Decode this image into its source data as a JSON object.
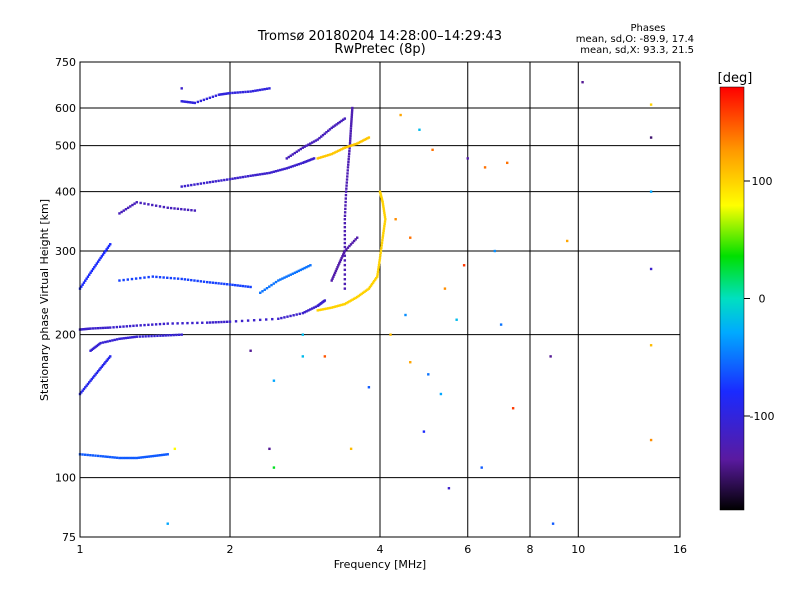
{
  "chart_data": {
    "type": "scatter",
    "title": "Tromsø 20180204 14:28:00–14:29:43",
    "subtitle": "RwPretec (8p)",
    "xlabel": "Frequency [MHz]",
    "ylabel": "Stationary phase Virtual Height [km]",
    "x_scale": "log",
    "y_scale": "log",
    "xlim": [
      1,
      16
    ],
    "ylim": [
      75,
      750
    ],
    "x_ticks": [
      1,
      2,
      4,
      6,
      8,
      10,
      16
    ],
    "x_tick_labels": [
      "1",
      "2",
      "4",
      "6",
      "8",
      "10",
      "16"
    ],
    "y_ticks": [
      75,
      100,
      200,
      300,
      400,
      500,
      600,
      750
    ],
    "y_tick_labels": [
      "75",
      "100",
      "200",
      "300",
      "400",
      "500",
      "600",
      "750"
    ],
    "grid": true,
    "phase_stats": {
      "heading": "Phases",
      "line_o": "mean, sd,O:  -89.9, 17.4",
      "line_x": "mean, sd,X:  93.3, 21.5"
    },
    "colorbar": {
      "label": "[deg]",
      "range": [
        -180,
        180
      ],
      "ticks": [
        -100,
        0,
        100
      ],
      "tick_labels": [
        "-100",
        "0",
        "100"
      ]
    },
    "traces": [
      {
        "f": [
          1.0,
          1.05,
          1.15,
          1.3,
          1.5,
          1.8,
          2.0,
          2.5,
          2.8,
          3.0,
          3.1
        ],
        "h": [
          205,
          206,
          207,
          209,
          211,
          212,
          213,
          216,
          222,
          230,
          236
        ],
        "phase": -110
      },
      {
        "f": [
          1.05,
          1.1,
          1.2,
          1.3,
          1.45,
          1.6
        ],
        "h": [
          185,
          192,
          196,
          198,
          199,
          200
        ],
        "phase": -105
      },
      {
        "f": [
          1.6,
          1.8,
          2.0,
          2.2,
          2.4,
          2.6,
          2.8,
          2.95
        ],
        "h": [
          410,
          418,
          425,
          432,
          438,
          448,
          460,
          470
        ],
        "phase": -110
      },
      {
        "f": [
          2.6,
          2.8,
          3.0,
          3.2,
          3.4
        ],
        "h": [
          470,
          495,
          515,
          545,
          570
        ],
        "phase": -120
      },
      {
        "f": [
          3.4,
          3.4,
          3.4,
          3.42,
          3.45,
          3.48,
          3.5,
          3.52
        ],
        "h": [
          250,
          300,
          350,
          400,
          450,
          500,
          550,
          600
        ],
        "phase": -125
      },
      {
        "f": [
          3.2,
          3.3,
          3.4,
          3.6
        ],
        "h": [
          260,
          280,
          300,
          320
        ],
        "phase": -130
      },
      {
        "f": [
          3.0,
          3.2,
          3.4,
          3.6,
          3.8,
          3.95,
          4.0,
          4.05,
          4.1,
          4.05,
          4.0
        ],
        "h": [
          225,
          228,
          232,
          240,
          250,
          265,
          290,
          320,
          350,
          380,
          400
        ],
        "phase": 100
      },
      {
        "f": [
          3.0,
          3.2,
          3.4,
          3.6,
          3.8
        ],
        "h": [
          470,
          480,
          495,
          505,
          520
        ],
        "phase": 105
      },
      {
        "f": [
          1.0,
          1.05,
          1.1,
          1.15
        ],
        "h": [
          150,
          160,
          170,
          180
        ],
        "phase": -90
      },
      {
        "f": [
          1.0,
          1.05,
          1.1,
          1.15
        ],
        "h": [
          250,
          270,
          290,
          310
        ],
        "phase": -80
      },
      {
        "f": [
          1.0,
          1.1,
          1.2,
          1.3,
          1.4,
          1.5
        ],
        "h": [
          112,
          111,
          110,
          110,
          111,
          112
        ],
        "phase": -60
      },
      {
        "f": [
          1.2,
          1.4,
          1.6,
          1.8,
          2.0,
          2.2
        ],
        "h": [
          260,
          265,
          262,
          258,
          255,
          252
        ],
        "phase": -70
      },
      {
        "f": [
          1.2,
          1.3,
          1.5,
          1.7
        ],
        "h": [
          360,
          380,
          370,
          365
        ],
        "phase": -120
      },
      {
        "f": [
          1.6,
          1.7,
          1.9,
          2.0,
          2.2,
          2.4
        ],
        "h": [
          620,
          615,
          640,
          645,
          650,
          660
        ],
        "phase": -100
      },
      {
        "f": [
          2.3,
          2.5,
          2.7,
          2.9
        ],
        "h": [
          245,
          260,
          270,
          280
        ],
        "phase": -50
      }
    ],
    "points": [
      {
        "f": 1.6,
        "h": 660,
        "phase": -110
      },
      {
        "f": 2.8,
        "h": 200,
        "phase": -20
      },
      {
        "f": 2.2,
        "h": 185,
        "phase": -140
      },
      {
        "f": 2.45,
        "h": 160,
        "phase": -30
      },
      {
        "f": 2.8,
        "h": 180,
        "phase": -20
      },
      {
        "f": 2.4,
        "h": 115,
        "phase": -140
      },
      {
        "f": 2.45,
        "h": 105,
        "phase": 30
      },
      {
        "f": 1.55,
        "h": 115,
        "phase": 80
      },
      {
        "f": 1.5,
        "h": 80,
        "phase": -30
      },
      {
        "f": 3.1,
        "h": 180,
        "phase": 150
      },
      {
        "f": 3.5,
        "h": 115,
        "phase": 110
      },
      {
        "f": 3.8,
        "h": 155,
        "phase": -60
      },
      {
        "f": 4.2,
        "h": 200,
        "phase": 110
      },
      {
        "f": 4.5,
        "h": 220,
        "phase": -40
      },
      {
        "f": 4.6,
        "h": 175,
        "phase": 120
      },
      {
        "f": 4.9,
        "h": 125,
        "phase": -80
      },
      {
        "f": 5.0,
        "h": 165,
        "phase": -50
      },
      {
        "f": 5.3,
        "h": 150,
        "phase": -30
      },
      {
        "f": 5.4,
        "h": 250,
        "phase": 130
      },
      {
        "f": 5.5,
        "h": 95,
        "phase": -110
      },
      {
        "f": 5.7,
        "h": 215,
        "phase": -20
      },
      {
        "f": 5.9,
        "h": 280,
        "phase": 160
      },
      {
        "f": 6.0,
        "h": 470,
        "phase": -130
      },
      {
        "f": 6.4,
        "h": 105,
        "phase": -60
      },
      {
        "f": 6.5,
        "h": 450,
        "phase": 140
      },
      {
        "f": 6.8,
        "h": 300,
        "phase": -40
      },
      {
        "f": 7.0,
        "h": 210,
        "phase": -50
      },
      {
        "f": 7.2,
        "h": 460,
        "phase": 140
      },
      {
        "f": 7.4,
        "h": 140,
        "phase": 160
      },
      {
        "f": 8.8,
        "h": 180,
        "phase": -140
      },
      {
        "f": 8.9,
        "h": 80,
        "phase": -60
      },
      {
        "f": 9.5,
        "h": 315,
        "phase": 120
      },
      {
        "f": 10.2,
        "h": 680,
        "phase": -140
      },
      {
        "f": 14.0,
        "h": 610,
        "phase": 100
      },
      {
        "f": 14.0,
        "h": 520,
        "phase": -150
      },
      {
        "f": 14.0,
        "h": 400,
        "phase": -30
      },
      {
        "f": 14.0,
        "h": 275,
        "phase": -110
      },
      {
        "f": 14.0,
        "h": 190,
        "phase": 110
      },
      {
        "f": 14.0,
        "h": 120,
        "phase": 130
      },
      {
        "f": 4.4,
        "h": 580,
        "phase": 120
      },
      {
        "f": 4.8,
        "h": 540,
        "phase": -20
      },
      {
        "f": 5.1,
        "h": 490,
        "phase": 140
      },
      {
        "f": 4.6,
        "h": 320,
        "phase": 140
      },
      {
        "f": 4.3,
        "h": 350,
        "phase": 130
      }
    ]
  }
}
